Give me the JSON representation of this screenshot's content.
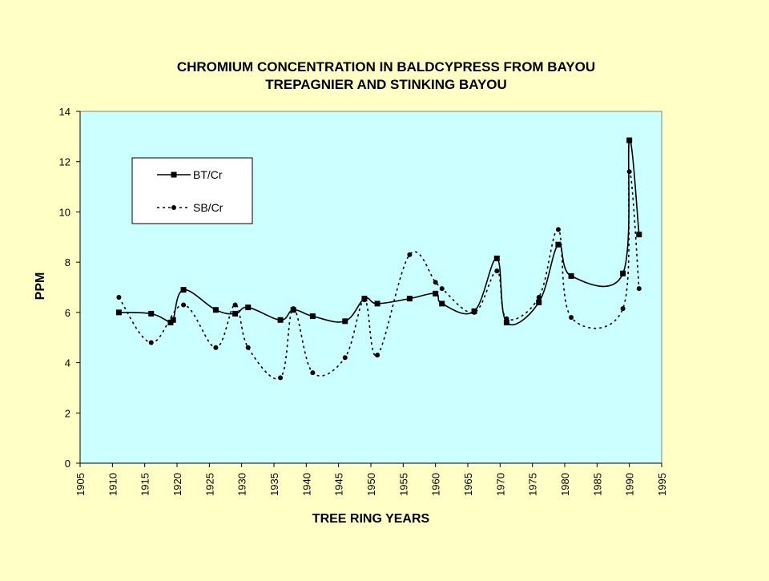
{
  "chart_data": {
    "type": "line",
    "title_lines": [
      "CHROMIUM CONCENTRATION IN BALDCYPRESS FROM BAYOU",
      "TREPAGNIER AND STINKING BAYOU"
    ],
    "xlabel": "TREE RING YEARS",
    "ylabel": "PPM",
    "xlim": [
      1905,
      1995
    ],
    "ylim": [
      0,
      14
    ],
    "xticks": [
      1905,
      1910,
      1915,
      1920,
      1925,
      1930,
      1935,
      1940,
      1945,
      1950,
      1955,
      1960,
      1965,
      1970,
      1975,
      1980,
      1985,
      1990,
      1995
    ],
    "yticks": [
      0,
      2,
      4,
      6,
      8,
      10,
      12,
      14
    ],
    "grid": false,
    "legend_position": "upper-left inside plot",
    "colors": {
      "background": "#FFFFC6",
      "plot_area": "#CCFFFF",
      "series": "#000000"
    },
    "series": [
      {
        "name": "BT/Cr",
        "line_style": "solid",
        "marker": "square",
        "points": [
          [
            1911,
            6.0
          ],
          [
            1916,
            5.95
          ],
          [
            1919,
            5.6
          ],
          [
            1919.4,
            5.7
          ],
          [
            1921,
            6.9
          ],
          [
            1926,
            6.1
          ],
          [
            1929,
            5.95
          ],
          [
            1931,
            6.2
          ],
          [
            1936,
            5.7
          ],
          [
            1938,
            6.1
          ],
          [
            1941,
            5.85
          ],
          [
            1946,
            5.65
          ],
          [
            1949,
            6.55
          ],
          [
            1951,
            6.35
          ],
          [
            1956,
            6.55
          ],
          [
            1960,
            6.75
          ],
          [
            1961,
            6.35
          ],
          [
            1966,
            6.05
          ],
          [
            1969.5,
            8.15
          ],
          [
            1971,
            5.6
          ],
          [
            1976,
            6.4
          ],
          [
            1979,
            8.7
          ],
          [
            1981,
            7.45
          ],
          [
            1989,
            7.55
          ],
          [
            1990,
            12.85
          ],
          [
            1991.5,
            9.1
          ]
        ]
      },
      {
        "name": "SB/Cr",
        "line_style": "dashed",
        "marker": "circle",
        "points": [
          [
            1911,
            6.6
          ],
          [
            1916,
            4.8
          ],
          [
            1921,
            6.3
          ],
          [
            1926,
            4.6
          ],
          [
            1929,
            6.3
          ],
          [
            1931,
            4.6
          ],
          [
            1936,
            3.4
          ],
          [
            1938,
            6.15
          ],
          [
            1941,
            3.6
          ],
          [
            1946,
            4.2
          ],
          [
            1949,
            6.5
          ],
          [
            1951,
            4.3
          ],
          [
            1956,
            8.3
          ],
          [
            1960,
            7.2
          ],
          [
            1961,
            6.95
          ],
          [
            1966,
            6.0
          ],
          [
            1969.5,
            7.65
          ],
          [
            1971,
            5.75
          ],
          [
            1976,
            6.6
          ],
          [
            1979,
            9.3
          ],
          [
            1981,
            5.8
          ],
          [
            1989,
            6.15
          ],
          [
            1990,
            11.6
          ],
          [
            1991.5,
            6.95
          ]
        ]
      }
    ]
  }
}
